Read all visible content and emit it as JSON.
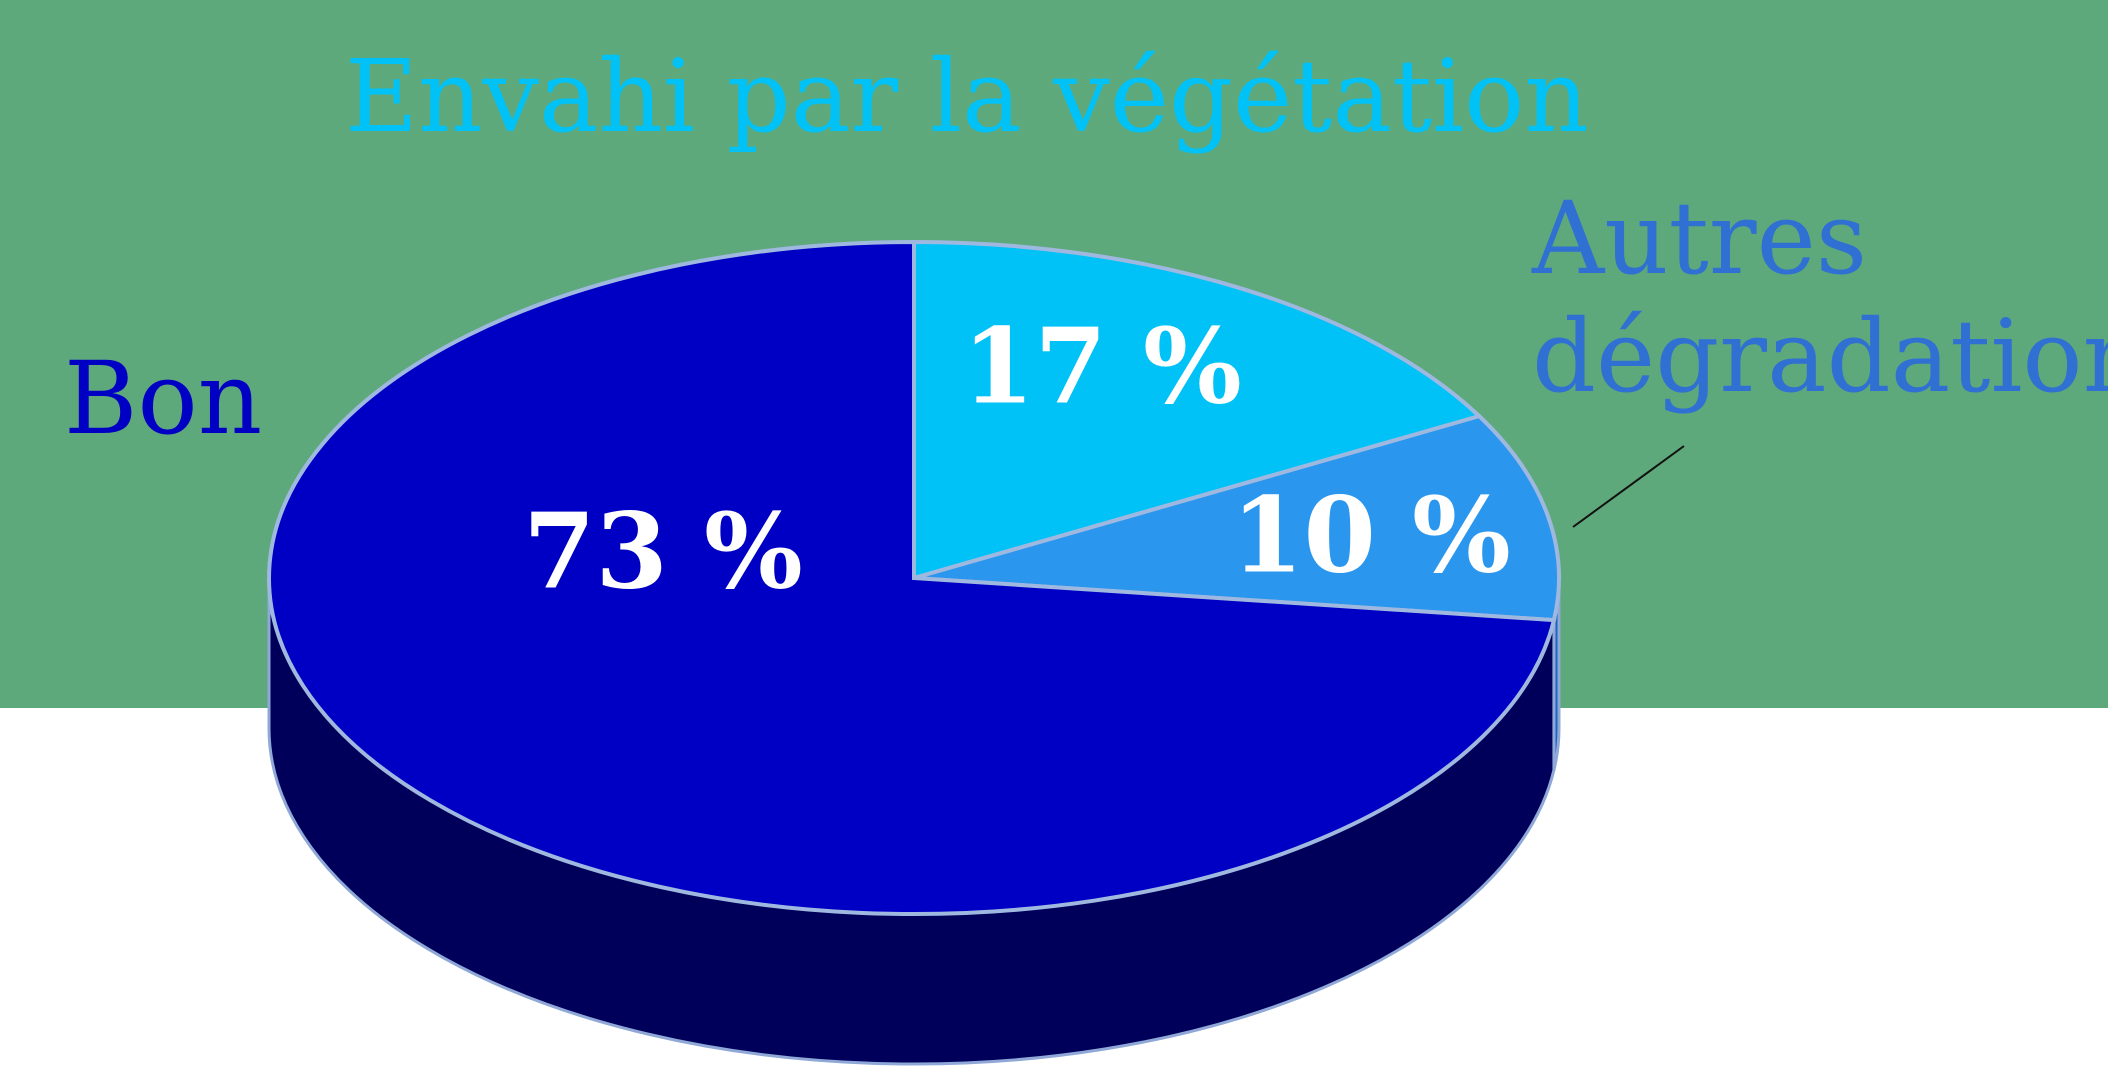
{
  "chart_data": {
    "type": "pie",
    "categories": [
      "Envahi par la végétation",
      "Autres dégradations",
      "Bon"
    ],
    "values": [
      17,
      10,
      73
    ],
    "value_labels": [
      "17 %",
      "10 %",
      "73 %"
    ],
    "colors": [
      "#00c2f6",
      "#2a96ee",
      "#0000c4"
    ],
    "side_colors": [
      "#0090c0",
      "#2065c0",
      "#00005a"
    ]
  }
}
